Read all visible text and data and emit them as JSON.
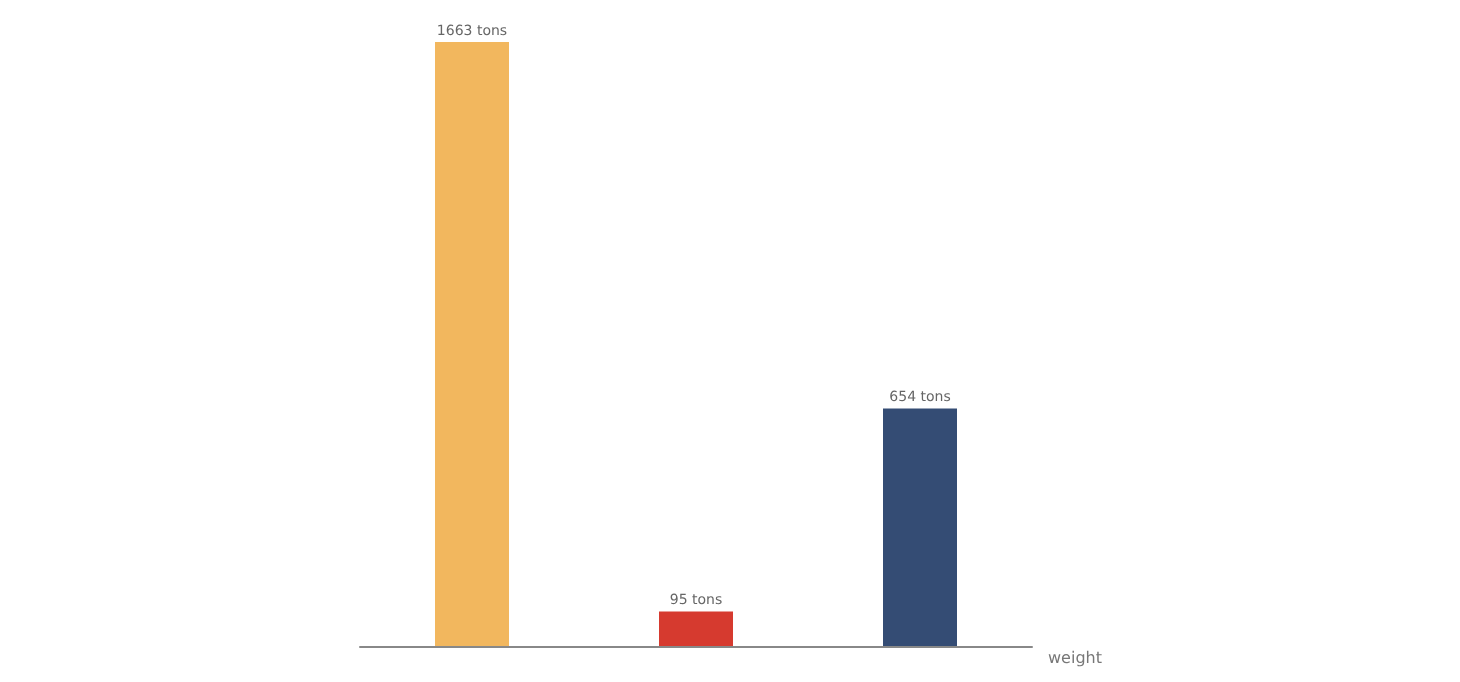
{
  "chart_data": {
    "type": "bar",
    "xlabel": "weight",
    "categories": [
      null,
      null,
      null
    ],
    "values": [
      1663,
      95,
      654
    ],
    "colors": [
      "#f2b75e",
      "#d63a2f",
      "#344c74"
    ],
    "value_labels": [
      "1663 tons",
      "95 tons",
      "654 tons"
    ]
  }
}
